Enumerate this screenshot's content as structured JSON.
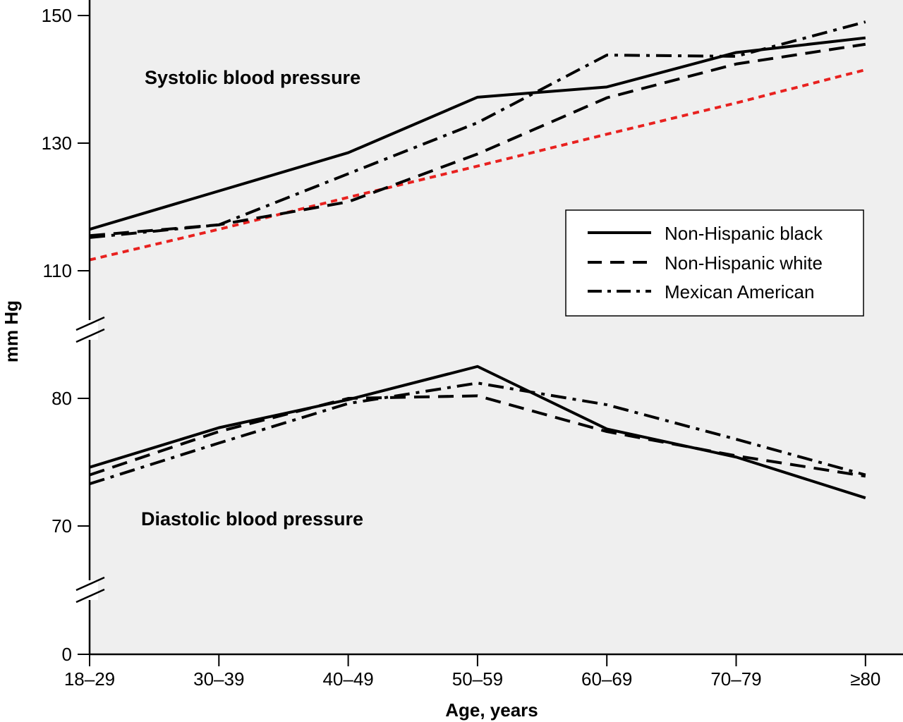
{
  "chart_data": {
    "type": "line",
    "xlabel": "Age, years",
    "ylabel": "mm Hg",
    "categories": [
      "18–29",
      "30–39",
      "40–49",
      "50–59",
      "60–69",
      "70–79",
      "≥80"
    ],
    "y_ticks": [
      "150",
      "130",
      "110",
      "80",
      "70",
      "0"
    ],
    "axis_breaks": [
      [
        0,
        70
      ],
      [
        80,
        110
      ]
    ],
    "grid": false,
    "legend_position": "right",
    "annotations": [
      "Systolic blood pressure",
      "Diastolic blood pressure"
    ],
    "colors": {
      "background": "#efefef",
      "series": "#000000",
      "reference": "#e8211f"
    },
    "series": [
      {
        "name": "Non-Hispanic black",
        "style": "solid",
        "systolic": [
          116.5,
          122.5,
          128.5,
          137.2,
          138.8,
          144.2,
          146.5
        ],
        "diastolic": [
          74.6,
          77.7,
          79.9,
          82.5,
          77.6,
          75.4,
          72.2
        ]
      },
      {
        "name": "Non-Hispanic white",
        "style": "dashed",
        "systolic": [
          115.5,
          117.2,
          120.8,
          128.3,
          137.1,
          142.4,
          145.5
        ],
        "diastolic": [
          74.0,
          77.4,
          80.0,
          80.2,
          77.4,
          75.5,
          73.9
        ]
      },
      {
        "name": "Mexican American",
        "style": "dash-dot",
        "systolic": [
          115.2,
          117.2,
          125.2,
          133.2,
          143.8,
          143.6,
          149.0
        ],
        "diastolic": [
          73.3,
          76.5,
          79.6,
          81.2,
          79.5,
          76.8,
          74.0
        ]
      }
    ],
    "reference_line": {
      "style": "dotted",
      "systolic": [
        111.7,
        116.5,
        121.5,
        126.4,
        131.4,
        136.3,
        141.5
      ]
    }
  }
}
